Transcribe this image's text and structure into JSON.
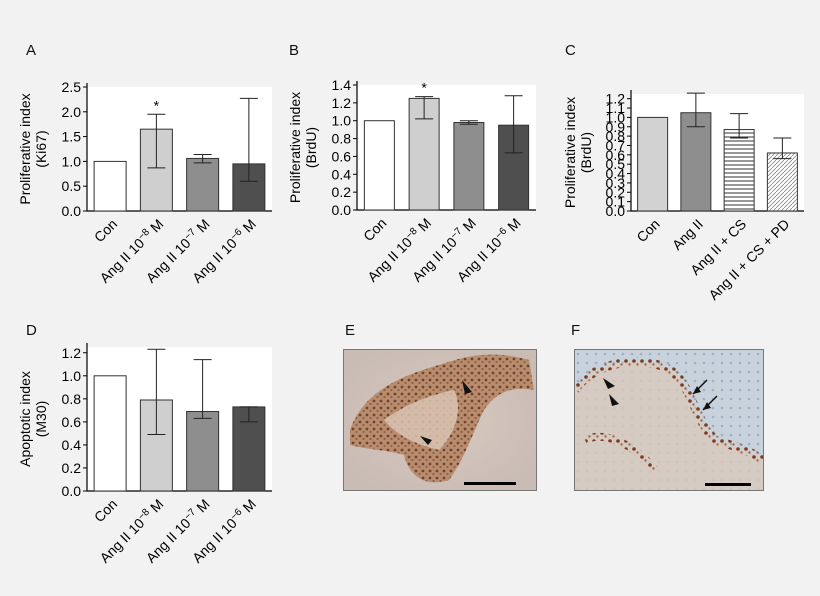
{
  "chart_data": [
    {
      "panel": "A",
      "type": "bar",
      "ylabel": [
        "Proliferative index",
        "(Ki67)"
      ],
      "ylim": [
        0,
        2.5
      ],
      "yticks": [
        "0.0",
        "0.5",
        "1.0",
        "1.5",
        "2.0",
        "2.5"
      ],
      "categories": [
        {
          "base": "Con",
          "sup": ""
        },
        {
          "base": "Ang II 10",
          "sup": "−8",
          "unit": " M"
        },
        {
          "base": "Ang II 10",
          "sup": "−7",
          "unit": " M"
        },
        {
          "base": "Ang II 10",
          "sup": "−6",
          "unit": " M"
        }
      ],
      "values": [
        1.0,
        1.65,
        1.06,
        0.95
      ],
      "error_low": [
        null,
        0.87,
        0.97,
        0.6
      ],
      "error_high": [
        null,
        1.95,
        1.14,
        2.27
      ],
      "significance": [
        "",
        "*",
        "",
        ""
      ],
      "fills": [
        "#ffffff",
        "#cfcfcf",
        "#8e8e8e",
        "#4f4f4f"
      ],
      "patterns": [
        "solid",
        "solid",
        "solid",
        "solid"
      ]
    },
    {
      "panel": "B",
      "type": "bar",
      "ylabel": [
        "Proliferative index",
        "(BrdU)"
      ],
      "ylim": [
        0,
        1.4
      ],
      "yticks": [
        "0.0",
        "0.2",
        "0.4",
        "0.6",
        "0.8",
        "1.0",
        "1.2",
        "1.4"
      ],
      "categories": [
        {
          "base": "Con",
          "sup": ""
        },
        {
          "base": "Ang II 10",
          "sup": "−8",
          "unit": " M"
        },
        {
          "base": "Ang II 10",
          "sup": "−7",
          "unit": " M"
        },
        {
          "base": "Ang II 10",
          "sup": "−6",
          "unit": " M"
        }
      ],
      "values": [
        1.0,
        1.25,
        0.98,
        0.95
      ],
      "error_low": [
        null,
        1.02,
        0.96,
        0.64
      ],
      "error_high": [
        null,
        1.27,
        1.0,
        1.28
      ],
      "significance": [
        "",
        "*",
        "",
        ""
      ],
      "fills": [
        "#ffffff",
        "#cfcfcf",
        "#8e8e8e",
        "#4f4f4f"
      ],
      "patterns": [
        "solid",
        "solid",
        "solid",
        "solid"
      ]
    },
    {
      "panel": "C",
      "type": "bar",
      "ylabel": [
        "Proliferative index",
        "(BrdU)"
      ],
      "ylim": [
        0,
        1.25
      ],
      "yticks": [
        "0.0",
        "0.1",
        "0.2",
        "0.3",
        "0.4",
        "0.5",
        "0.6",
        "0.7",
        "0.8",
        "0.9",
        "1.0",
        "1.1",
        "1.2"
      ],
      "categories": [
        {
          "base": "Con",
          "sup": ""
        },
        {
          "base": "Ang II",
          "sup": ""
        },
        {
          "base": "Ang II + CS",
          "sup": ""
        },
        {
          "base": "Ang II + CS + PD",
          "sup": ""
        }
      ],
      "values": [
        1.0,
        1.05,
        0.87,
        0.62
      ],
      "error_low": [
        null,
        0.9,
        0.78,
        0.56
      ],
      "error_high": [
        null,
        1.26,
        1.04,
        0.78
      ],
      "significance": [
        "",
        "",
        "",
        ""
      ],
      "fills": [
        "#d2d2d2",
        "#8e8e8e",
        "#ffffff",
        "#ffffff"
      ],
      "patterns": [
        "solid",
        "solid",
        "hlines",
        "diag"
      ]
    },
    {
      "panel": "D",
      "type": "bar",
      "ylabel": [
        "Apoptotic index",
        "(M30)"
      ],
      "ylim": [
        0,
        1.25
      ],
      "yticks": [
        "0.0",
        "0.2",
        "0.4",
        "0.6",
        "0.8",
        "1.0",
        "1.2"
      ],
      "categories": [
        {
          "base": "Con",
          "sup": ""
        },
        {
          "base": "Ang II 10",
          "sup": "−8",
          "unit": " M"
        },
        {
          "base": "Ang II 10",
          "sup": "−7",
          "unit": " M"
        },
        {
          "base": "Ang II 10",
          "sup": "−6",
          "unit": " M"
        }
      ],
      "values": [
        1.0,
        0.79,
        0.69,
        0.73
      ],
      "error_low": [
        null,
        0.49,
        0.63,
        0.6
      ],
      "error_high": [
        null,
        1.23,
        1.14,
        0.73
      ],
      "significance": [
        "",
        "",
        "",
        ""
      ],
      "fills": [
        "#ffffff",
        "#cfcfcf",
        "#8e8e8e",
        "#4f4f4f"
      ],
      "patterns": [
        "solid",
        "solid",
        "solid",
        "solid"
      ]
    }
  ],
  "images": [
    {
      "panel": "E"
    },
    {
      "panel": "F"
    }
  ]
}
